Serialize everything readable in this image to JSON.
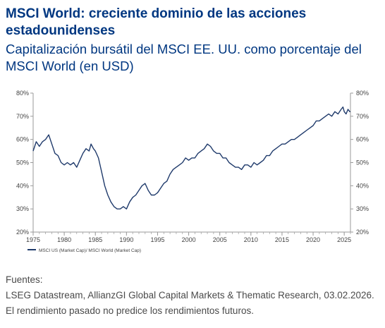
{
  "header": {
    "title": "MSCI World: creciente dominio de las acciones estadounidenses",
    "subtitle": "Capitalización bursátil del MSCI EE. UU. como porcentaje del MSCI World (en USD)"
  },
  "footer": {
    "sources_label": "Fuentes:",
    "sources_text": "LSEG Datastream, AllianzGI Global Capital Markets & Thematic Research, 03.02.2026. El rendimiento pasado no predice los rendimientos futuros."
  },
  "colors": {
    "title": "#003781",
    "line": "#1f3a6b",
    "axis_text": "#444444"
  },
  "chart_data": {
    "type": "line",
    "title": "",
    "xlabel": "",
    "ylabel": "",
    "xlim": [
      1975,
      2026
    ],
    "ylim": [
      20,
      80
    ],
    "x_ticks": [
      "1975",
      "1980",
      "1985",
      "1990",
      "1995",
      "2000",
      "2005",
      "2010",
      "2015",
      "2020",
      "2025"
    ],
    "y_ticks_left": [
      "20%",
      "30%",
      "40%",
      "50%",
      "60%",
      "70%",
      "80%"
    ],
    "y_ticks_right": [
      "20%",
      "30%",
      "40%",
      "50%",
      "60%",
      "70%",
      "80%"
    ],
    "legend_position": "bottom-left",
    "grid": false,
    "series": [
      {
        "name": "MSCI US (Market Cap)/ MSCI World (Market Cap)",
        "points": [
          [
            1975.0,
            55
          ],
          [
            1975.5,
            59
          ],
          [
            1976.0,
            57
          ],
          [
            1976.5,
            59
          ],
          [
            1977.0,
            60
          ],
          [
            1977.5,
            62
          ],
          [
            1978.0,
            58
          ],
          [
            1978.5,
            54
          ],
          [
            1979.0,
            53
          ],
          [
            1979.5,
            50
          ],
          [
            1980.0,
            49
          ],
          [
            1980.5,
            50
          ],
          [
            1981.0,
            49
          ],
          [
            1981.5,
            50
          ],
          [
            1982.0,
            48
          ],
          [
            1982.5,
            51
          ],
          [
            1983.0,
            54
          ],
          [
            1983.5,
            56
          ],
          [
            1984.0,
            55
          ],
          [
            1984.3,
            58
          ],
          [
            1984.7,
            56
          ],
          [
            1985.0,
            55
          ],
          [
            1985.5,
            52
          ],
          [
            1986.0,
            46
          ],
          [
            1986.5,
            40
          ],
          [
            1987.0,
            36
          ],
          [
            1987.5,
            33
          ],
          [
            1988.0,
            31
          ],
          [
            1988.5,
            30
          ],
          [
            1989.0,
            30
          ],
          [
            1989.5,
            31
          ],
          [
            1990.0,
            30
          ],
          [
            1990.5,
            33
          ],
          [
            1991.0,
            35
          ],
          [
            1991.5,
            36
          ],
          [
            1992.0,
            38
          ],
          [
            1992.5,
            40
          ],
          [
            1993.0,
            41
          ],
          [
            1993.5,
            38
          ],
          [
            1994.0,
            36
          ],
          [
            1994.5,
            36
          ],
          [
            1995.0,
            37
          ],
          [
            1995.5,
            39
          ],
          [
            1996.0,
            41
          ],
          [
            1996.5,
            42
          ],
          [
            1997.0,
            45
          ],
          [
            1997.5,
            47
          ],
          [
            1998.0,
            48
          ],
          [
            1998.5,
            49
          ],
          [
            1999.0,
            50
          ],
          [
            1999.5,
            52
          ],
          [
            2000.0,
            51
          ],
          [
            2000.5,
            52
          ],
          [
            2001.0,
            52
          ],
          [
            2001.5,
            54
          ],
          [
            2002.0,
            55
          ],
          [
            2002.5,
            56
          ],
          [
            2003.0,
            58
          ],
          [
            2003.5,
            57
          ],
          [
            2004.0,
            55
          ],
          [
            2004.5,
            54
          ],
          [
            2005.0,
            54
          ],
          [
            2005.5,
            52
          ],
          [
            2006.0,
            52
          ],
          [
            2006.5,
            50
          ],
          [
            2007.0,
            49
          ],
          [
            2007.5,
            48
          ],
          [
            2008.0,
            48
          ],
          [
            2008.5,
            47
          ],
          [
            2009.0,
            49
          ],
          [
            2009.5,
            49
          ],
          [
            2010.0,
            48
          ],
          [
            2010.5,
            50
          ],
          [
            2011.0,
            49
          ],
          [
            2011.5,
            50
          ],
          [
            2012.0,
            51
          ],
          [
            2012.5,
            53
          ],
          [
            2013.0,
            53
          ],
          [
            2013.5,
            55
          ],
          [
            2014.0,
            56
          ],
          [
            2014.5,
            57
          ],
          [
            2015.0,
            58
          ],
          [
            2015.5,
            58
          ],
          [
            2016.0,
            59
          ],
          [
            2016.5,
            60
          ],
          [
            2017.0,
            60
          ],
          [
            2017.5,
            61
          ],
          [
            2018.0,
            62
          ],
          [
            2018.5,
            63
          ],
          [
            2019.0,
            64
          ],
          [
            2019.5,
            65
          ],
          [
            2020.0,
            66
          ],
          [
            2020.5,
            68
          ],
          [
            2021.0,
            68
          ],
          [
            2021.5,
            69
          ],
          [
            2022.0,
            70
          ],
          [
            2022.5,
            71
          ],
          [
            2023.0,
            70
          ],
          [
            2023.5,
            72
          ],
          [
            2024.0,
            71
          ],
          [
            2024.5,
            73
          ],
          [
            2024.8,
            74
          ],
          [
            2025.0,
            72
          ],
          [
            2025.3,
            71
          ],
          [
            2025.6,
            73
          ],
          [
            2025.9,
            72
          ],
          [
            2026.0,
            72
          ]
        ]
      }
    ]
  }
}
